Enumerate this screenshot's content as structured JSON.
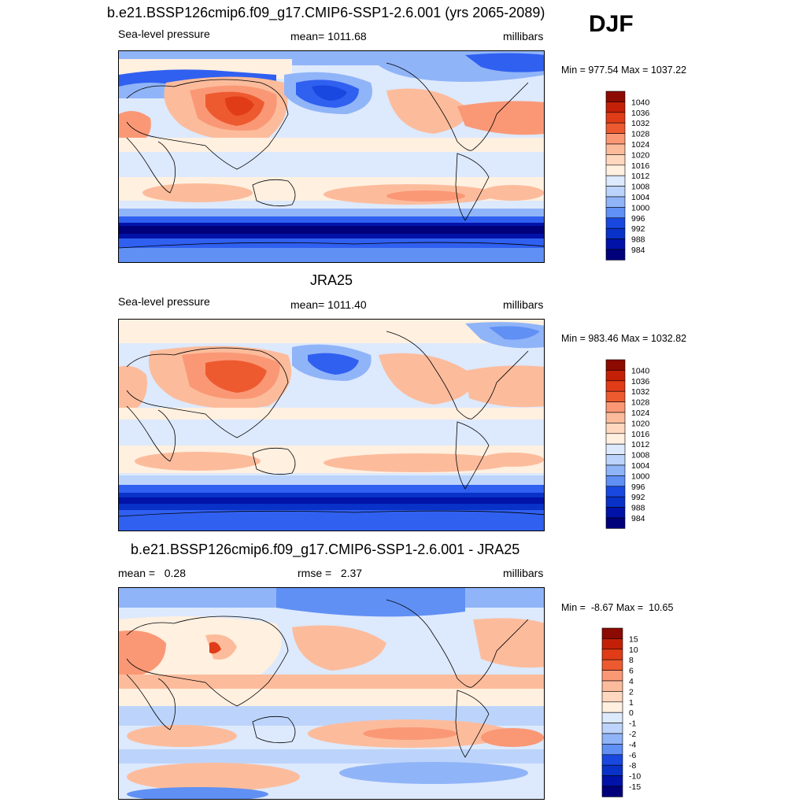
{
  "season": "DJF",
  "colors": {
    "pressure_scale": [
      "#00007a",
      "#0012a8",
      "#0832c8",
      "#1848e0",
      "#3060f0",
      "#6090f4",
      "#90b4f8",
      "#bcd4fb",
      "#dde9fd",
      "#fff0e0",
      "#ffd8bf",
      "#fcbc9c",
      "#fa9876",
      "#f57850",
      "#ee5a30",
      "#e03c18",
      "#c42008",
      "#8c0a00"
    ],
    "land_outline": "#000000"
  },
  "panels": [
    {
      "title": "b.e21.BSSP126cmip6.f09_g17.CMIP6-SSP1-2.6.001 (yrs 2065-2089)",
      "left_label": "Sea-level pressure",
      "center_label": "mean= 1011.68",
      "right_label": "millibars",
      "minmax": "Min = 977.54 Max = 1037.22",
      "map_data": {
        "variable": "Sea-level pressure",
        "units": "millibars",
        "mean": 1011.68,
        "min": 977.54,
        "max": 1037.22,
        "colorbar_labels": [
          "1040",
          "1036",
          "1032",
          "1028",
          "1024",
          "1020",
          "1016",
          "1012",
          "1008",
          "1004",
          "1000",
          "996",
          "992",
          "988",
          "984"
        ]
      }
    },
    {
      "title": "JRA25",
      "left_label": "Sea-level pressure",
      "center_label": "mean= 1011.40",
      "right_label": "millibars",
      "minmax": "Min = 983.46 Max = 1032.82",
      "map_data": {
        "variable": "Sea-level pressure",
        "units": "millibars",
        "mean": 1011.4,
        "min": 983.46,
        "max": 1032.82,
        "colorbar_labels": [
          "1040",
          "1036",
          "1032",
          "1028",
          "1024",
          "1020",
          "1016",
          "1012",
          "1008",
          "1004",
          "1000",
          "996",
          "992",
          "988",
          "984"
        ]
      }
    },
    {
      "title": "b.e21.BSSP126cmip6.f09_g17.CMIP6-SSP1-2.6.001 - JRA25",
      "left_label": "mean =   0.28",
      "center_label": "rmse =   2.37",
      "right_label": "millibars",
      "minmax": "Min =  -8.67 Max =  10.65",
      "map_data": {
        "variable": "difference",
        "units": "millibars",
        "mean": 0.28,
        "rmse": 2.37,
        "min": -8.67,
        "max": 10.65,
        "colorbar_labels": [
          "15",
          "10",
          "8",
          "6",
          "4",
          "2",
          "1",
          "0",
          "-1",
          "-2",
          "-4",
          "-6",
          "-8",
          "-10",
          "-15"
        ]
      }
    }
  ]
}
